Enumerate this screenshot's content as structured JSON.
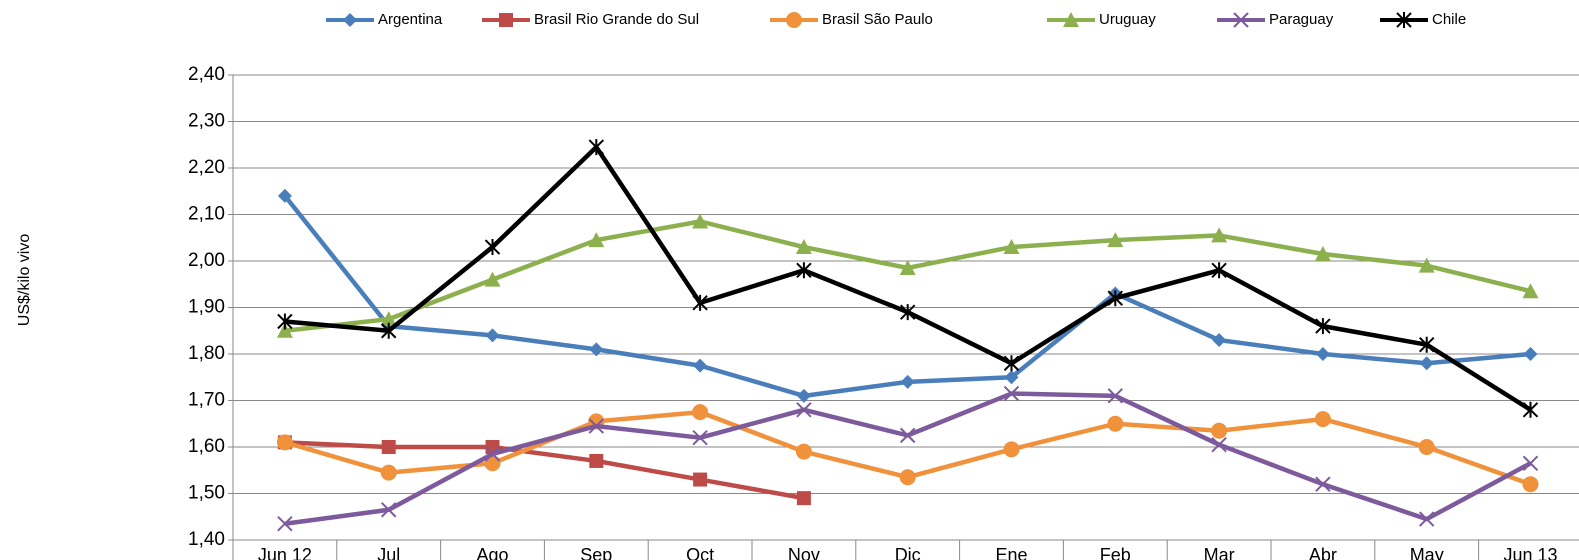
{
  "chart_data": {
    "type": "line",
    "y_label": "US$/kilo vivo",
    "categories": [
      "Jun 12",
      "Jul",
      "Ago",
      "Sep",
      "Oct",
      "Nov",
      "Dic",
      "Ene",
      "Feb",
      "Mar",
      "Abr",
      "May",
      "Jun 13"
    ],
    "series": [
      {
        "name": "Argentina",
        "color": "#4a7ebb",
        "marker": "diamond",
        "values": [
          2.14,
          1.86,
          1.84,
          1.81,
          1.775,
          1.71,
          1.74,
          1.75,
          1.93,
          1.83,
          1.8,
          1.78,
          1.8
        ]
      },
      {
        "name": "Brasil Rio Grande do Sul",
        "color": "#be4b48",
        "marker": "square",
        "values": [
          1.61,
          1.6,
          1.6,
          1.57,
          1.53,
          1.49,
          null,
          null,
          null,
          null,
          null,
          null,
          null
        ]
      },
      {
        "name": "Brasil São Paulo",
        "color": "#f0913b",
        "marker": "circle",
        "values": [
          1.61,
          1.545,
          1.565,
          1.655,
          1.675,
          1.59,
          1.535,
          1.595,
          1.65,
          1.635,
          1.66,
          1.6,
          1.52
        ]
      },
      {
        "name": "Uruguay",
        "color": "#8db04f",
        "marker": "triangle",
        "values": [
          1.85,
          1.875,
          1.96,
          2.045,
          2.085,
          2.03,
          1.985,
          2.03,
          2.045,
          2.055,
          2.015,
          1.99,
          1.935
        ]
      },
      {
        "name": "Paraguay",
        "color": "#7d5a9c",
        "marker": "x",
        "values": [
          1.435,
          1.465,
          1.585,
          1.645,
          1.62,
          1.68,
          1.625,
          1.715,
          1.71,
          1.605,
          1.52,
          1.445,
          1.565
        ]
      },
      {
        "name": "Chile",
        "color": "#000000",
        "marker": "star",
        "values": [
          1.87,
          1.85,
          2.03,
          2.245,
          1.91,
          1.98,
          1.89,
          1.78,
          1.92,
          1.98,
          1.86,
          1.82,
          1.68
        ]
      }
    ],
    "ylim": [
      1.4,
      2.4
    ],
    "yticks": [
      {
        "value": 1.4,
        "label": "1,40"
      },
      {
        "value": 1.5,
        "label": "1,50"
      },
      {
        "value": 1.6,
        "label": "1,60"
      },
      {
        "value": 1.7,
        "label": "1,70"
      },
      {
        "value": 1.8,
        "label": "1,80"
      },
      {
        "value": 1.9,
        "label": "1,90"
      },
      {
        "value": 2.0,
        "label": "2,00"
      },
      {
        "value": 2.1,
        "label": "2,10"
      },
      {
        "value": 2.2,
        "label": "2,20"
      },
      {
        "value": 2.3,
        "label": "2,30"
      },
      {
        "value": 2.4,
        "label": "2,40"
      }
    ],
    "grid": true,
    "legend": "top"
  }
}
